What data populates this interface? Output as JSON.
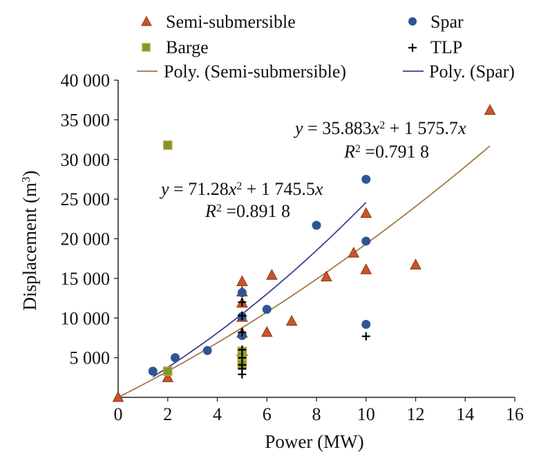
{
  "chart_data": {
    "type": "scatter",
    "xlabel": "Power (MW)",
    "ylabel_main": "Displacement (m",
    "ylabel_sup": "3",
    "ylabel_close": ")",
    "xlim": [
      0,
      16
    ],
    "ylim": [
      0,
      40000
    ],
    "xticks": [
      0,
      2,
      4,
      6,
      8,
      10,
      12,
      14,
      16
    ],
    "yticks": [
      5000,
      10000,
      15000,
      20000,
      25000,
      30000,
      35000,
      40000
    ],
    "xtick_labels": [
      "0",
      "2",
      "4",
      "6",
      "8",
      "10",
      "12",
      "14",
      "16"
    ],
    "ytick_labels": [
      "5 000",
      "10 000",
      "15 000",
      "20 000",
      "25 000",
      "30 000",
      "35 000",
      "40 000"
    ],
    "grid": false,
    "legend": {
      "placement": "top",
      "items": [
        {
          "name": "Semi-submersible",
          "marker": "triangle",
          "color": "#C8552A"
        },
        {
          "name": "Spar",
          "marker": "circle",
          "color": "#2F5597"
        },
        {
          "name": "Barge",
          "marker": "square",
          "color": "#7A9A2A"
        },
        {
          "name": "TLP",
          "marker": "plus",
          "color": "#000000"
        },
        {
          "name": "Poly. (Semi-submersible)",
          "marker": "line",
          "color": "#A07845"
        },
        {
          "name": "Poly. (Spar)",
          "marker": "line",
          "color": "#3A3F8F"
        }
      ]
    },
    "series": [
      {
        "name": "Semi-submersible",
        "marker": "triangle",
        "color": "#C8552A",
        "points": [
          [
            0,
            0
          ],
          [
            2,
            2500
          ],
          [
            5,
            14600
          ],
          [
            5,
            13300
          ],
          [
            5,
            11900
          ],
          [
            5,
            10100
          ],
          [
            5,
            8100
          ],
          [
            5,
            5800
          ],
          [
            6,
            8200
          ],
          [
            6.2,
            15400
          ],
          [
            7,
            9600
          ],
          [
            8.4,
            15200
          ],
          [
            9.5,
            18200
          ],
          [
            10,
            23200
          ],
          [
            10,
            16100
          ],
          [
            12,
            16700
          ],
          [
            15,
            36200
          ]
        ]
      },
      {
        "name": "Spar",
        "marker": "circle",
        "color": "#2F5597",
        "points": [
          [
            1.4,
            3300
          ],
          [
            2,
            3300
          ],
          [
            2.3,
            5000
          ],
          [
            3.6,
            5900
          ],
          [
            5,
            13200
          ],
          [
            5,
            10200
          ],
          [
            5,
            7800
          ],
          [
            5,
            4400
          ],
          [
            6,
            11100
          ],
          [
            8,
            21700
          ],
          [
            10,
            27500
          ],
          [
            10,
            19700
          ],
          [
            10,
            9200
          ]
        ]
      },
      {
        "name": "Barge",
        "marker": "square",
        "color": "#7A9A2A",
        "points": [
          [
            2,
            31800
          ],
          [
            2,
            3300
          ],
          [
            5,
            5800
          ],
          [
            5,
            5200
          ],
          [
            5,
            4700
          ],
          [
            5,
            4200
          ]
        ]
      },
      {
        "name": "TLP",
        "marker": "plus",
        "color": "#000000",
        "points": [
          [
            5,
            12000
          ],
          [
            5,
            10300
          ],
          [
            5,
            8200
          ],
          [
            5,
            6000
          ],
          [
            5,
            5000
          ],
          [
            5,
            4100
          ],
          [
            5,
            3600
          ],
          [
            5,
            2900
          ],
          [
            10,
            7700
          ]
        ]
      }
    ],
    "trendlines": [
      {
        "name": "Poly. (Semi-submersible)",
        "color": "#A07845",
        "a": 35.883,
        "b": 1575.7,
        "x_range": [
          0,
          15
        ]
      },
      {
        "name": "Poly. (Spar)",
        "color": "#3A3F8F",
        "a": 71.28,
        "b": 1745.5,
        "x_range": [
          1.4,
          10
        ]
      }
    ],
    "annotations": {
      "semi": {
        "y": "y",
        "eq": " = 35.883",
        "x1": "x",
        "sq": "2",
        "mid": " + 1 575.7",
        "x2": "x",
        "r": "R",
        "rsq": "2",
        "rval": " =0.791 8"
      },
      "spar": {
        "y": "y",
        "eq": " = 71.28",
        "x1": "x",
        "sq": "2",
        "mid": " + 1 745.5",
        "x2": "x",
        "r": "R",
        "rsq": "2",
        "rval": " =0.891 8"
      }
    }
  }
}
